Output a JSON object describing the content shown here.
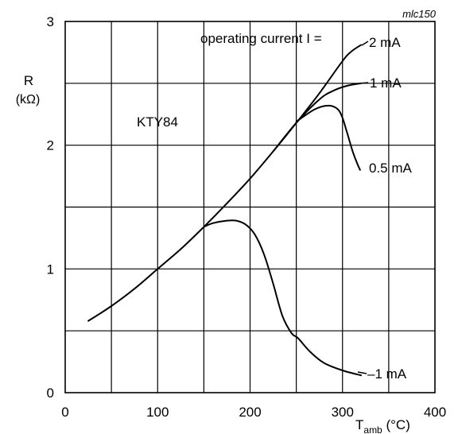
{
  "figure_code": "mlc150",
  "chart_data": {
    "type": "line",
    "ylabel_main": "R",
    "ylabel_unit": "(kΩ)",
    "xlabel_main": "T",
    "xlabel_sub": "amb",
    "xlabel_unit": " (°C)",
    "annotation": "KTY84",
    "legend_title": "operating current I =",
    "xlim": [
      0,
      400
    ],
    "ylim": [
      0,
      3
    ],
    "xticks": [
      0,
      100,
      200,
      300,
      400
    ],
    "xtick_labels": [
      "0",
      "100",
      "200",
      "300",
      "400"
    ],
    "yticks": [
      0,
      1,
      2,
      3
    ],
    "ytick_labels": [
      "0",
      "1",
      "2",
      "3"
    ],
    "grid": true,
    "series": [
      {
        "name": "2 mA",
        "x": [
          25,
          50,
          75,
          100,
          125,
          150,
          175,
          200,
          225,
          250,
          275,
          300,
          310,
          320
        ],
        "y": [
          0.58,
          0.7,
          0.84,
          1.0,
          1.16,
          1.34,
          1.53,
          1.73,
          1.95,
          2.18,
          2.42,
          2.68,
          2.76,
          2.81
        ]
      },
      {
        "name": "1 mA",
        "x": [
          225,
          250,
          275,
          290,
          305,
          320
        ],
        "y": [
          1.95,
          2.18,
          2.37,
          2.44,
          2.48,
          2.5
        ]
      },
      {
        "name": "0.5 mA",
        "x": [
          250,
          270,
          285,
          295,
          300,
          305,
          311,
          316,
          319
        ],
        "y": [
          2.19,
          2.29,
          2.32,
          2.29,
          2.22,
          2.1,
          1.95,
          1.85,
          1.8
        ]
      },
      {
        "name": "–1 mA",
        "x": [
          150,
          160,
          175,
          185,
          195,
          205,
          215,
          225,
          235,
          245,
          252,
          265,
          280,
          300,
          320
        ],
        "y": [
          1.34,
          1.37,
          1.39,
          1.39,
          1.36,
          1.28,
          1.12,
          0.88,
          0.62,
          0.48,
          0.44,
          0.33,
          0.24,
          0.18,
          0.14
        ]
      }
    ]
  }
}
